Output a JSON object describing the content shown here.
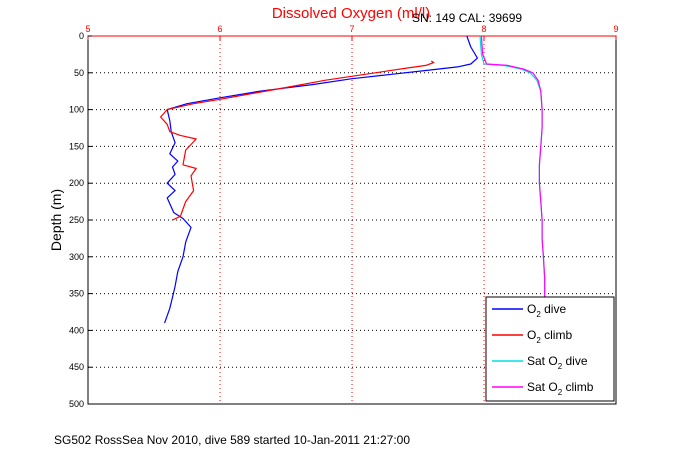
{
  "chart_data": {
    "type": "line",
    "title": "Dissolved Oxygen (ml/l)",
    "header_right": "SN: 149  CAL: 39699",
    "ylabel": "Depth (m)",
    "caption": "SG502 RossSea Nov 2010, dive 589 started 10-Jan-2011 21:27:00",
    "xlim": [
      5,
      9
    ],
    "ylim": [
      0,
      500
    ],
    "y_reversed": true,
    "x_axis_position": "top",
    "grid": true,
    "legend_position": "bottom-right",
    "xticks": [
      "5",
      "6",
      "7",
      "8",
      "9"
    ],
    "yticks": [
      "0",
      "50",
      "100",
      "150",
      "200",
      "250",
      "300",
      "350",
      "400",
      "450",
      "500"
    ],
    "series": [
      {
        "name": "O2 dive",
        "legend_main": "O",
        "legend_sub": "2",
        "legend_rest": " dive",
        "color": "#0000ff",
        "x": [
          7.87,
          7.9,
          7.95,
          7.9,
          7.8,
          7.6,
          7.3,
          7.0,
          6.7,
          6.3,
          6.0,
          5.75,
          5.6,
          5.62,
          5.63,
          5.66,
          5.62,
          5.68,
          5.64,
          5.66,
          5.6,
          5.66,
          5.6,
          5.62,
          5.65,
          5.72,
          5.78,
          5.74,
          5.72,
          5.68,
          5.66,
          5.64,
          5.62,
          5.6,
          5.58
        ],
        "y": [
          0,
          15,
          30,
          38,
          42,
          46,
          52,
          58,
          66,
          75,
          84,
          92,
          100,
          115,
          130,
          145,
          160,
          170,
          178,
          188,
          200,
          210,
          220,
          228,
          240,
          248,
          260,
          280,
          300,
          320,
          340,
          355,
          370,
          380,
          390
        ]
      },
      {
        "name": "O2 climb",
        "legend_main": "O",
        "legend_sub": "2",
        "legend_rest": " climb",
        "color": "#ff0000",
        "x": [
          7.6,
          7.62,
          7.56,
          7.4,
          7.1,
          6.8,
          6.5,
          6.25,
          6.0,
          5.8,
          5.6,
          5.55,
          5.6,
          5.62,
          5.7,
          5.82,
          5.74,
          5.72,
          5.82,
          5.78,
          5.8,
          5.74,
          5.72,
          5.7,
          5.64
        ],
        "y": [
          34,
          36,
          40,
          44,
          52,
          60,
          70,
          78,
          86,
          92,
          100,
          110,
          120,
          130,
          135,
          140,
          155,
          175,
          180,
          190,
          210,
          225,
          235,
          245,
          250
        ]
      },
      {
        "name": "Sat O2 dive",
        "legend_main": "Sat O",
        "legend_sub": "2",
        "legend_rest": " dive",
        "color": "#00e0e0",
        "x": [
          7.97,
          7.98,
          8.0,
          8.15,
          8.28,
          8.35,
          8.4,
          8.43,
          8.44,
          8.44,
          8.43,
          8.42,
          8.42,
          8.43,
          8.44,
          8.44,
          8.45,
          8.46,
          8.46
        ],
        "y": [
          0,
          25,
          38,
          40,
          45,
          50,
          60,
          75,
          100,
          125,
          150,
          175,
          200,
          225,
          250,
          275,
          300,
          330,
          355
        ]
      },
      {
        "name": "Sat O2 climb",
        "legend_main": "Sat O",
        "legend_sub": "2",
        "legend_rest": " climb",
        "color": "#ff00ff",
        "x": [
          7.98,
          7.99,
          8.02,
          8.18,
          8.3,
          8.37,
          8.41,
          8.43,
          8.44,
          8.44,
          8.43,
          8.42,
          8.42,
          8.43,
          8.44,
          8.44,
          8.45,
          8.46,
          8.46
        ],
        "y": [
          0,
          25,
          38,
          40,
          45,
          50,
          60,
          75,
          100,
          125,
          150,
          175,
          200,
          225,
          250,
          275,
          300,
          330,
          355
        ]
      }
    ]
  }
}
